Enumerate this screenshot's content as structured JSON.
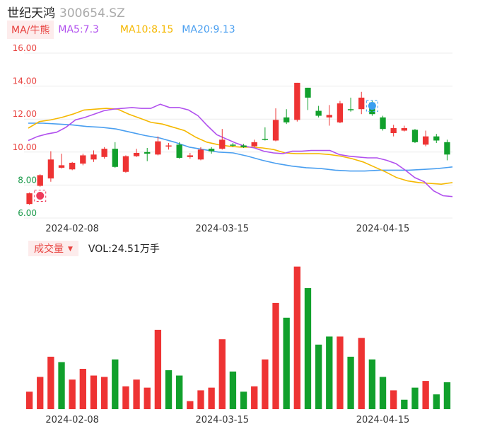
{
  "stock": {
    "name": "世纪天鸿",
    "code": "300654.SZ"
  },
  "ma_legend": {
    "toggle_label": "MA/牛熊",
    "ma5": "MA5:7.3",
    "ma10": "MA10:8.15",
    "ma20": "MA20:9.13"
  },
  "volume_legend": {
    "toggle_label": "成交量",
    "toggle_arrow": "▼",
    "vol_label": "VOL:24.51万手"
  },
  "colors": {
    "up": "#ee3333",
    "down": "#11a02c",
    "ma5": "#b150ee",
    "ma10": "#f5b800",
    "ma20": "#4a9ff0",
    "markerRed": "#ee3a5a",
    "markerBlue": "#3a9ff0"
  },
  "chart_data": {
    "type": "candlestick",
    "y_ticks": [
      "16.00",
      "14.00",
      "12.00",
      "10.00",
      "8.00",
      "6.00"
    ],
    "ylim": [
      6,
      16
    ],
    "x_tick_labels": [
      "2024-02-08",
      "2024-03-15",
      "2024-04-15"
    ],
    "x_tick_index": [
      4,
      18,
      33
    ],
    "candles": [
      {
        "o": 6.85,
        "c": 7.5,
        "h": 7.55,
        "l": 6.8
      },
      {
        "o": 7.95,
        "c": 8.6,
        "h": 8.65,
        "l": 7.9
      },
      {
        "o": 8.4,
        "c": 9.55,
        "h": 10.05,
        "l": 8.2
      },
      {
        "o": 9.05,
        "c": 9.2,
        "h": 9.9,
        "l": 9.0
      },
      {
        "o": 8.95,
        "c": 9.35,
        "h": 9.4,
        "l": 8.9
      },
      {
        "o": 9.3,
        "c": 9.8,
        "h": 9.9,
        "l": 9.2
      },
      {
        "o": 9.55,
        "c": 9.85,
        "h": 10.1,
        "l": 9.4
      },
      {
        "o": 9.7,
        "c": 10.2,
        "h": 10.3,
        "l": 9.6
      },
      {
        "o": 10.2,
        "c": 9.1,
        "h": 10.6,
        "l": 9.05
      },
      {
        "o": 8.8,
        "c": 9.75,
        "h": 9.8,
        "l": 8.75
      },
      {
        "o": 9.75,
        "c": 9.95,
        "h": 10.2,
        "l": 9.7
      },
      {
        "o": 10.0,
        "c": 9.9,
        "h": 10.25,
        "l": 9.45
      },
      {
        "o": 9.85,
        "c": 10.65,
        "h": 10.95,
        "l": 9.8
      },
      {
        "o": 10.35,
        "c": 10.4,
        "h": 10.55,
        "l": 10.15
      },
      {
        "o": 10.45,
        "c": 9.65,
        "h": 10.6,
        "l": 9.6
      },
      {
        "o": 9.7,
        "c": 9.8,
        "h": 9.95,
        "l": 9.6
      },
      {
        "o": 9.55,
        "c": 10.15,
        "h": 10.3,
        "l": 9.5
      },
      {
        "o": 10.2,
        "c": 10.05,
        "h": 10.3,
        "l": 9.9
      },
      {
        "o": 10.2,
        "c": 10.75,
        "h": 11.4,
        "l": 10.15
      },
      {
        "o": 10.45,
        "c": 10.4,
        "h": 10.55,
        "l": 10.3
      },
      {
        "o": 10.4,
        "c": 10.3,
        "h": 10.5,
        "l": 10.25
      },
      {
        "o": 10.35,
        "c": 10.6,
        "h": 10.75,
        "l": 10.3
      },
      {
        "o": 10.8,
        "c": 10.75,
        "h": 11.5,
        "l": 10.7
      },
      {
        "o": 10.7,
        "c": 11.95,
        "h": 12.65,
        "l": 10.65
      },
      {
        "o": 12.1,
        "c": 11.8,
        "h": 12.6,
        "l": 11.7
      },
      {
        "o": 11.95,
        "c": 14.2,
        "h": 14.2,
        "l": 11.85
      },
      {
        "o": 13.9,
        "c": 13.3,
        "h": 13.9,
        "l": 12.55
      },
      {
        "o": 12.5,
        "c": 12.2,
        "h": 12.8,
        "l": 12.1
      },
      {
        "o": 12.1,
        "c": 12.25,
        "h": 12.85,
        "l": 11.6
      },
      {
        "o": 11.8,
        "c": 12.95,
        "h": 13.1,
        "l": 11.75
      },
      {
        "o": 12.6,
        "c": 12.55,
        "h": 13.3,
        "l": 12.45
      },
      {
        "o": 12.6,
        "c": 13.3,
        "h": 13.65,
        "l": 12.3
      },
      {
        "o": 13.0,
        "c": 12.3,
        "h": 13.1,
        "l": 12.2
      },
      {
        "o": 12.1,
        "c": 11.4,
        "h": 12.2,
        "l": 11.3
      },
      {
        "o": 11.15,
        "c": 11.45,
        "h": 11.65,
        "l": 10.95
      },
      {
        "o": 11.3,
        "c": 11.45,
        "h": 11.6,
        "l": 11.25
      },
      {
        "o": 11.35,
        "c": 10.6,
        "h": 11.4,
        "l": 10.55
      },
      {
        "o": 10.45,
        "c": 10.95,
        "h": 11.3,
        "l": 10.35
      },
      {
        "o": 10.95,
        "c": 10.7,
        "h": 11.1,
        "l": 10.55
      },
      {
        "o": 10.6,
        "c": 9.85,
        "h": 10.75,
        "l": 9.5
      }
    ],
    "ma5": [
      10.7,
      10.95,
      11.1,
      11.2,
      11.5,
      11.95,
      12.1,
      12.3,
      12.5,
      12.6,
      12.65,
      12.7,
      12.65,
      12.65,
      12.9,
      12.7,
      12.7,
      12.55,
      12.2,
      11.6,
      11.05,
      10.8,
      10.55,
      10.35,
      10.25,
      10.05,
      9.95,
      9.9,
      10.05,
      10.05,
      10.1,
      10.1,
      10.1,
      9.85,
      9.75,
      9.7,
      9.65,
      9.65,
      9.5,
      9.3,
      8.9,
      8.45,
      8.2,
      7.65,
      7.35,
      7.3
    ],
    "ma10": [
      11.45,
      11.85,
      11.95,
      12.1,
      12.3,
      12.55,
      12.6,
      12.65,
      12.6,
      12.3,
      12.05,
      11.8,
      11.7,
      11.5,
      11.3,
      10.9,
      10.6,
      10.45,
      10.35,
      10.3,
      10.3,
      10.25,
      10.15,
      9.95,
      9.9,
      9.9,
      9.9,
      9.85,
      9.75,
      9.6,
      9.4,
      9.1,
      8.8,
      8.45,
      8.25,
      8.15,
      8.1,
      8.05,
      8.15
    ],
    "ma20": [
      11.75,
      11.75,
      11.7,
      11.65,
      11.55,
      11.5,
      11.4,
      11.2,
      11.0,
      10.85,
      10.6,
      10.3,
      10.15,
      10.0,
      9.95,
      9.75,
      9.5,
      9.3,
      9.15,
      9.05,
      9.0,
      8.9,
      8.85,
      8.85,
      8.9,
      8.9,
      8.9,
      8.95,
      9.0,
      9.1
    ],
    "volume": {
      "max": 100,
      "values": [
        13,
        24,
        39,
        35,
        22,
        30,
        25,
        24,
        37,
        17,
        22,
        16,
        59,
        29,
        25,
        6,
        14,
        16,
        52,
        28,
        13,
        17,
        37,
        79,
        68,
        106,
        90,
        48,
        54,
        54,
        39,
        53,
        37,
        24,
        14,
        7,
        16,
        21,
        11,
        20
      ],
      "up": [
        true,
        true,
        true,
        false,
        true,
        true,
        true,
        true,
        false,
        true,
        true,
        true,
        true,
        false,
        false,
        true,
        true,
        true,
        true,
        false,
        false,
        true,
        true,
        true,
        false,
        true,
        false,
        false,
        false,
        true,
        false,
        true,
        false,
        false,
        true,
        false,
        false,
        true,
        false,
        false
      ]
    }
  }
}
